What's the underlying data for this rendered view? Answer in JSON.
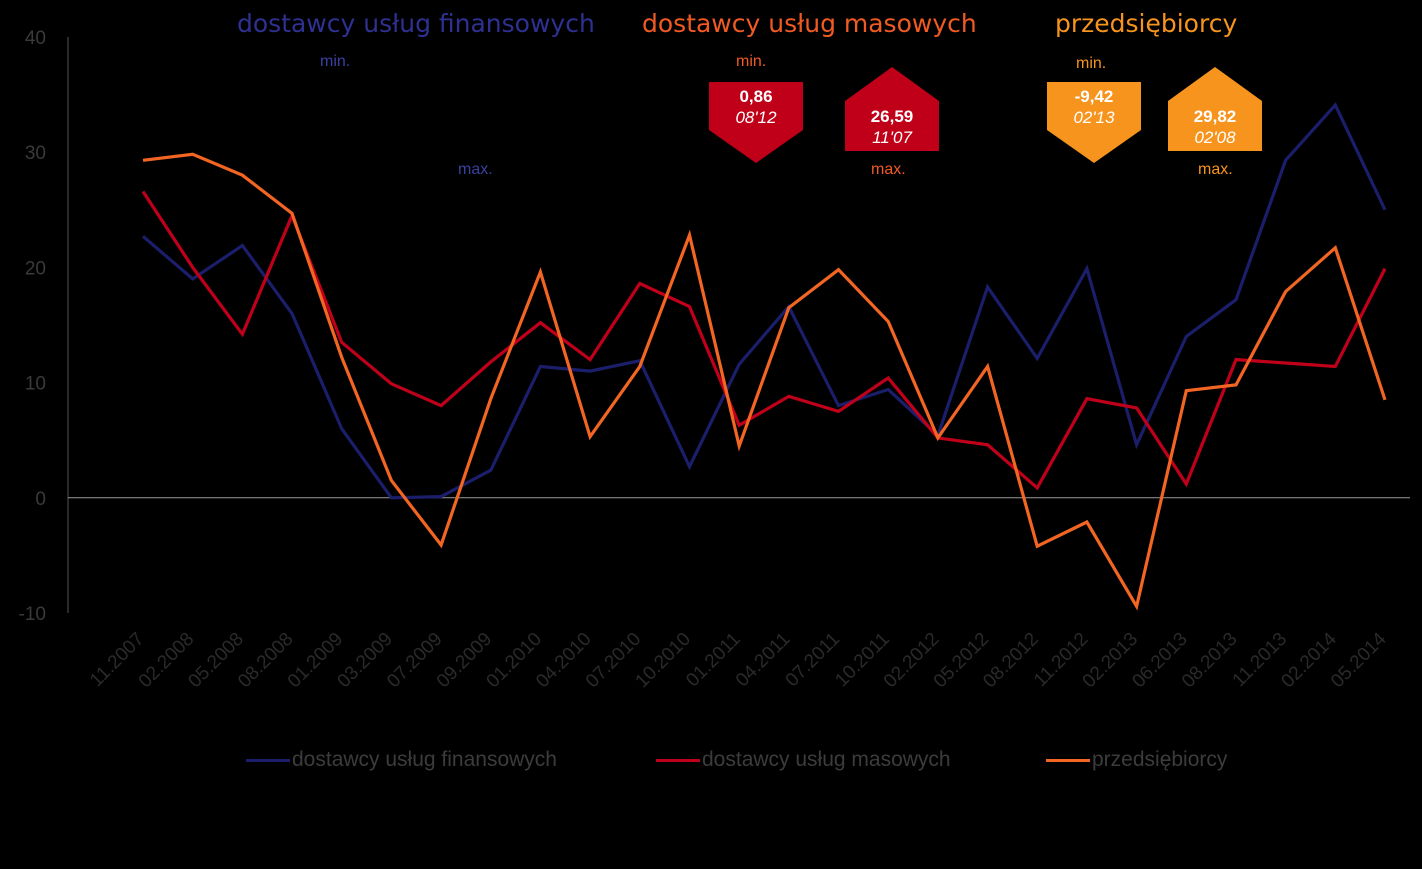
{
  "headers": {
    "fin": "dostawcy usług finansowych",
    "mas": "dostawcy usług masowych",
    "prz": "przedsiębiorcy"
  },
  "colors": {
    "fin": "#1b1f6b",
    "mas": "#c0001a",
    "prz": "#f26522",
    "mas_badge": "#c00018",
    "prz_badge": "#f7941d",
    "fin_label": "#3a40a0",
    "mas_label": "#f15a22",
    "prz_label": "#f7941d"
  },
  "labels": {
    "fin_min": "min.",
    "fin_max": "max.",
    "mas_min": "min.",
    "mas_max": "max.",
    "prz_min": "min.",
    "prz_max": "max."
  },
  "badges": {
    "mas_min": {
      "value": "0,86",
      "date": "08'12"
    },
    "mas_max": {
      "value": "26,59",
      "date": "11'07"
    },
    "prz_min": {
      "value": "-9,42",
      "date": "02'13"
    },
    "prz_max": {
      "value": "29,82",
      "date": "02'08"
    }
  },
  "chart_data": {
    "type": "line",
    "categories": [
      "11.2007",
      "02.2008",
      "05.2008",
      "08.2008",
      "01.2009",
      "03.2009",
      "07.2009",
      "09.2009",
      "01.2010",
      "04.2010",
      "07.2010",
      "10.2010",
      "01.2011",
      "04.2011",
      "07.2011",
      "10.2011",
      "02.2012",
      "05.2012",
      "08.2012",
      "11.2012",
      "02.2013",
      "06.2013",
      "08.2013",
      "11.2013",
      "02.2014",
      "05.2014"
    ],
    "series": [
      {
        "name": "dostawcy usług finansowych",
        "color": "#1b1f6b",
        "values": [
          22.7,
          19.0,
          21.9,
          16.0,
          6.0,
          0.0,
          0.1,
          2.4,
          11.4,
          11.0,
          11.9,
          2.7,
          11.6,
          16.6,
          8.0,
          9.4,
          5.4,
          18.3,
          12.1,
          19.9,
          4.6,
          14.0,
          17.2,
          29.3,
          34.1,
          25.0
        ]
      },
      {
        "name": "dostawcy usług masowych",
        "color": "#c0001a",
        "values": [
          26.59,
          20.0,
          14.2,
          24.5,
          13.5,
          9.9,
          8.0,
          11.8,
          15.2,
          12.0,
          18.6,
          16.6,
          6.3,
          8.8,
          7.5,
          10.4,
          5.2,
          4.6,
          0.86,
          8.6,
          7.8,
          1.2,
          12.0,
          11.7,
          11.4,
          19.9
        ]
      },
      {
        "name": "przedsiębiorcy",
        "color": "#f26522",
        "values": [
          29.3,
          29.82,
          28.0,
          24.7,
          12.2,
          1.5,
          -4.1,
          8.6,
          19.6,
          5.3,
          11.4,
          22.8,
          4.5,
          16.5,
          19.8,
          15.3,
          5.2,
          11.4,
          -4.2,
          -2.1,
          -9.42,
          9.3,
          9.8,
          17.9,
          21.7,
          8.5
        ]
      }
    ],
    "ylim": [
      -10,
      40
    ],
    "yticks": [
      -10,
      0,
      10,
      20,
      30,
      40
    ],
    "legend": "bottom",
    "grid": false
  }
}
